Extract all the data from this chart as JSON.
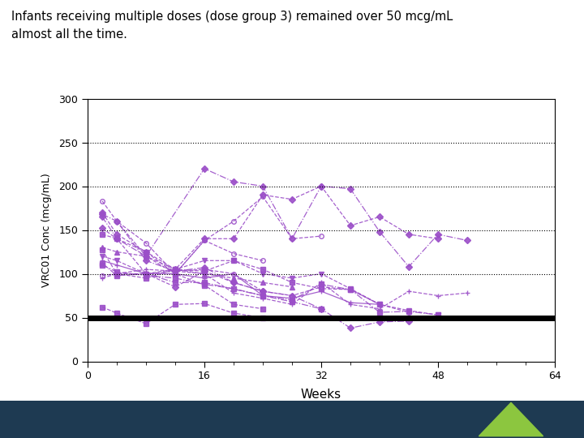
{
  "title_line1": "Infants receiving multiple doses (dose group 3) remained over 50 mcg/mL",
  "title_line2": "almost all the time.",
  "xlabel": "Weeks",
  "ylabel": "VRC01 Conc (mcg/mL)",
  "xlim": [
    0,
    64
  ],
  "ylim": [
    0,
    300
  ],
  "yticks": [
    0,
    50,
    100,
    150,
    200,
    250,
    300
  ],
  "xticks": [
    0,
    16,
    32,
    48,
    64
  ],
  "minor_xticks": [
    4,
    8,
    12,
    20,
    24,
    28,
    36,
    40,
    44,
    52,
    56,
    60
  ],
  "hlines_dotted": [
    100,
    150,
    200,
    250
  ],
  "threshold_y": 50,
  "line_color": "#9B4FC8",
  "bg_color": "#FFFFFF",
  "bottom_bar_color": "#1e3a52",
  "triangle_color": "#8cc63f",
  "series": [
    {
      "x": [
        2,
        4,
        8,
        12,
        16,
        20,
        24,
        28,
        32,
        36,
        40,
        44,
        48
      ],
      "y": [
        170,
        145,
        125,
        105,
        140,
        140,
        190,
        185,
        200,
        155,
        165,
        145,
        140
      ],
      "marker": "D",
      "ls": "--"
    },
    {
      "x": [
        2,
        4,
        8,
        16,
        20,
        24,
        28,
        32,
        36,
        40,
        44,
        48,
        52
      ],
      "y": [
        165,
        140,
        120,
        220,
        205,
        200,
        140,
        200,
        197,
        148,
        108,
        145,
        138
      ],
      "marker": "D",
      "ls": "-."
    },
    {
      "x": [
        2,
        4,
        8,
        12,
        16,
        20,
        24,
        28,
        32
      ],
      "y": [
        183,
        160,
        135,
        100,
        138,
        160,
        188,
        140,
        143
      ],
      "marker": "o",
      "ls": "--"
    },
    {
      "x": [
        2,
        4,
        8,
        12,
        16,
        20,
        24,
        28,
        32,
        36,
        40
      ],
      "y": [
        127,
        100,
        95,
        105,
        103,
        115,
        105,
        90,
        83,
        82,
        65
      ],
      "marker": "s",
      "ls": "--"
    },
    {
      "x": [
        2,
        4,
        8,
        12,
        16,
        24,
        28,
        32,
        36,
        40,
        44,
        48
      ],
      "y": [
        112,
        98,
        100,
        90,
        90,
        75,
        70,
        88,
        82,
        56,
        57,
        53
      ],
      "marker": "s",
      "ls": "-."
    },
    {
      "x": [
        2,
        4,
        8,
        12,
        16,
        20,
        24,
        28,
        32,
        36,
        40,
        44,
        48
      ],
      "y": [
        120,
        115,
        100,
        105,
        115,
        115,
        100,
        95,
        100,
        83,
        65,
        58,
        53
      ],
      "marker": "v",
      "ls": "--"
    },
    {
      "x": [
        2,
        4,
        8,
        12,
        16,
        20,
        24,
        28,
        32,
        36,
        40
      ],
      "y": [
        115,
        110,
        100,
        100,
        95,
        100,
        75,
        72,
        80,
        67,
        65
      ],
      "marker": "+",
      "ls": "-"
    },
    {
      "x": [
        2,
        4,
        8,
        12,
        16,
        20,
        24,
        28,
        32,
        36,
        40,
        44,
        48,
        52
      ],
      "y": [
        95,
        100,
        105,
        103,
        100,
        78,
        72,
        65,
        90,
        65,
        60,
        80,
        75,
        78
      ],
      "marker": "+",
      "ls": "--"
    },
    {
      "x": [
        2,
        4,
        8,
        12,
        16,
        20,
        24
      ],
      "y": [
        145,
        140,
        125,
        100,
        87,
        65,
        60
      ],
      "marker": "s",
      "ls": "--"
    },
    {
      "x": [
        2,
        4,
        8,
        12,
        16,
        20,
        24,
        28,
        32
      ],
      "y": [
        110,
        102,
        98,
        95,
        88,
        83,
        75,
        68,
        60
      ],
      "marker": "s",
      "ls": "-."
    },
    {
      "x": [
        2,
        4,
        8,
        12,
        16,
        20,
        24
      ],
      "y": [
        62,
        55,
        43,
        65,
        66,
        55,
        50
      ],
      "marker": "s",
      "ls": "--"
    },
    {
      "x": [
        2,
        4,
        8,
        12,
        16,
        20,
        24,
        28
      ],
      "y": [
        130,
        125,
        120,
        105,
        100,
        95,
        90,
        85
      ],
      "marker": "^",
      "ls": "--"
    },
    {
      "x": [
        2,
        4,
        8,
        12,
        16,
        20,
        24
      ],
      "y": [
        152,
        140,
        100,
        85,
        103,
        90,
        80
      ],
      "marker": "D",
      "ls": "--"
    },
    {
      "x": [
        2,
        4,
        8,
        12,
        16,
        20,
        24,
        28,
        32,
        36,
        40,
        44
      ],
      "y": [
        168,
        160,
        115,
        103,
        107,
        90,
        80,
        75,
        60,
        38,
        45,
        46
      ],
      "marker": "D",
      "ls": "-."
    },
    {
      "x": [
        2,
        4,
        8,
        12,
        16,
        20,
        24,
        28,
        32,
        36,
        40,
        44
      ],
      "y": [
        98,
        100,
        100,
        103,
        105,
        100,
        80,
        75,
        85,
        82,
        65,
        56
      ],
      "marker": "o",
      "ls": "--"
    },
    {
      "x": [
        4,
        8,
        12,
        16,
        20,
        24
      ],
      "y": [
        160,
        120,
        100,
        138,
        123,
        115
      ],
      "marker": "o",
      "ls": "--"
    }
  ]
}
